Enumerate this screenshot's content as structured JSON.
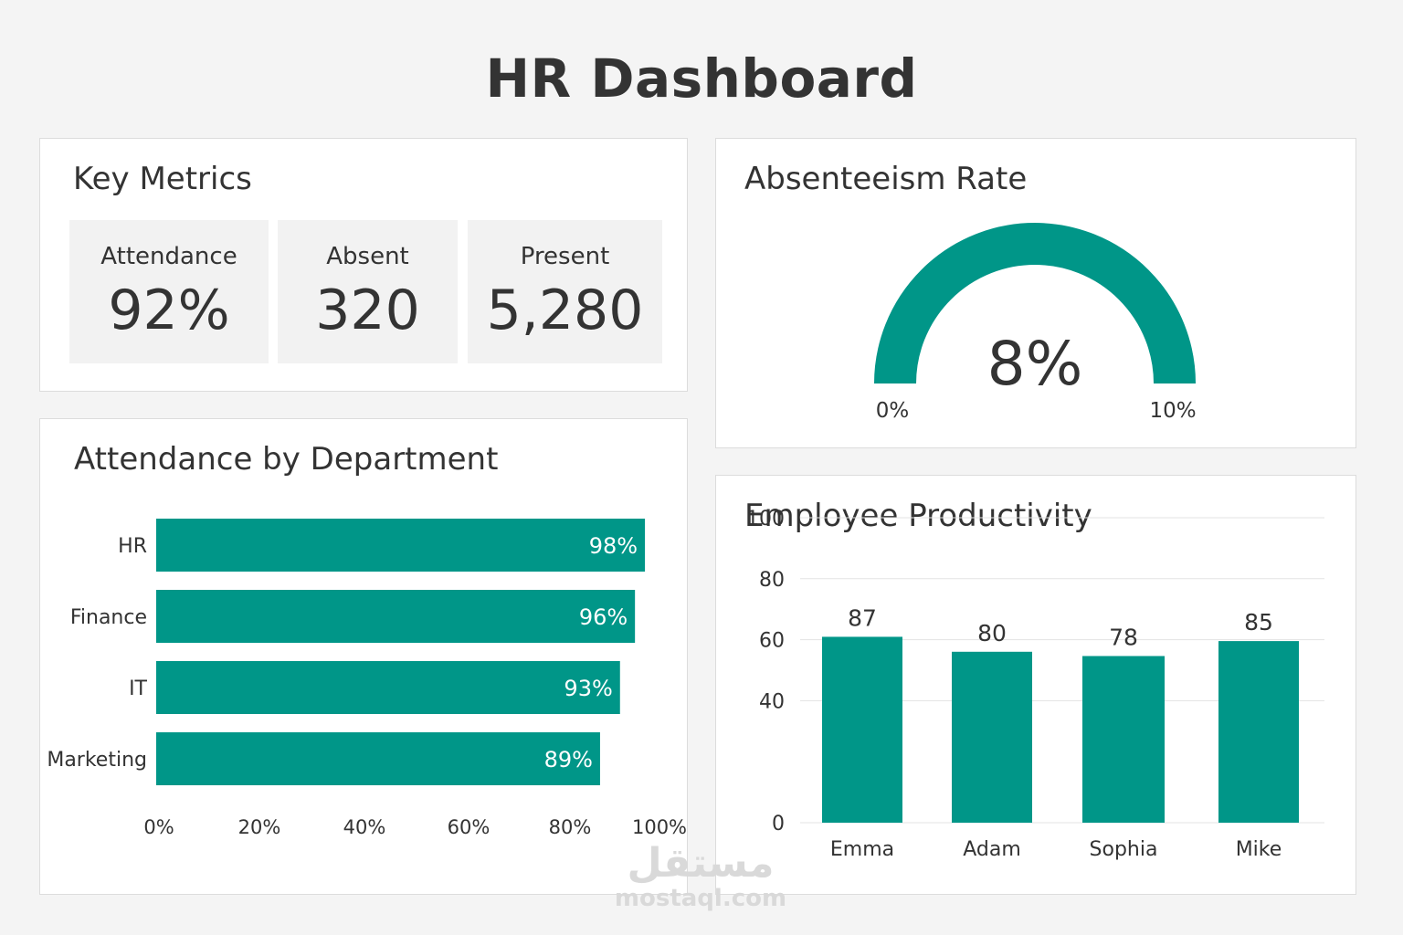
{
  "header": {
    "title": "HR Dashboard"
  },
  "colors": {
    "accent": "#009688",
    "card_bg": "#ffffff",
    "page_bg": "#f4f4f4",
    "tile_bg": "#f2f2f2"
  },
  "key_metrics": {
    "title": "Key Metrics",
    "items": [
      {
        "label": "Attendance",
        "value": "92%"
      },
      {
        "label": "Absent",
        "value": "320"
      },
      {
        "label": "Present",
        "value": "5,280"
      }
    ]
  },
  "absenteeism": {
    "title": "Absenteeism Rate",
    "value_label": "8%",
    "value": 8,
    "min_label": "0%",
    "max_label": "10%"
  },
  "watermark": {
    "arabic": "مستقل",
    "latin": "mostaql.com"
  },
  "chart_data": [
    {
      "type": "bar",
      "orientation": "horizontal",
      "title": "Attendance by Department",
      "categories": [
        "HR",
        "Finance",
        "IT",
        "Marketing"
      ],
      "values": [
        98,
        96,
        93,
        89
      ],
      "value_labels": [
        "98%",
        "96%",
        "93%",
        "89%"
      ],
      "xlim": [
        0,
        100
      ],
      "x_ticks": [
        "0%",
        "20%",
        "40%",
        "60%",
        "80%",
        "100%"
      ],
      "color": "#009688",
      "grid": false
    },
    {
      "type": "bar",
      "title": "Employee Productivity",
      "categories": [
        "Emma",
        "Adam",
        "Sophia",
        "Mike"
      ],
      "values": [
        87,
        80,
        78,
        85
      ],
      "value_labels": [
        "87",
        "80",
        "78",
        "85"
      ],
      "ylim": [
        0,
        100
      ],
      "y_ticks": [
        "0",
        "40",
        "60",
        "80",
        "100"
      ],
      "color": "#009688",
      "grid": true
    }
  ]
}
